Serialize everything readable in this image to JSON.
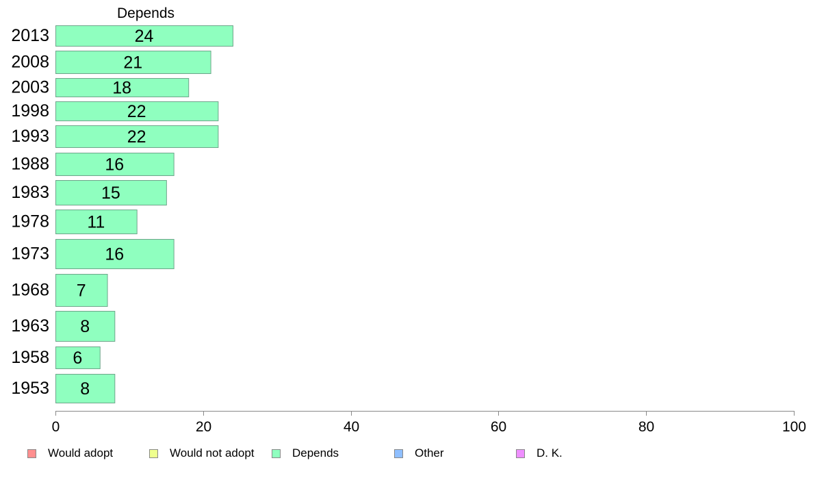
{
  "chart_data": {
    "type": "bar",
    "orientation": "horizontal",
    "title": "Depends",
    "categories": [
      "2013",
      "2008",
      "2003",
      "1998",
      "1993",
      "1988",
      "1983",
      "1978",
      "1973",
      "1968",
      "1963",
      "1958",
      "1953"
    ],
    "series": [
      {
        "name": "Depends",
        "values": [
          24,
          21,
          18,
          22,
          22,
          16,
          15,
          11,
          16,
          7,
          8,
          6,
          8
        ],
        "color": "#8fffbf"
      }
    ],
    "xlim": [
      0,
      100
    ],
    "xticks": [
      0,
      20,
      40,
      60,
      80,
      100
    ],
    "grid": false,
    "legend_position": "bottom",
    "legend": [
      {
        "label": "Would adopt",
        "color": "#ff8f8f"
      },
      {
        "label": "Would not adopt",
        "color": "#efff8f"
      },
      {
        "label": "Depends",
        "color": "#8fffbf"
      },
      {
        "label": "Other",
        "color": "#8fbfff"
      },
      {
        "label": "D. K.",
        "color": "#ef8fff"
      }
    ]
  }
}
